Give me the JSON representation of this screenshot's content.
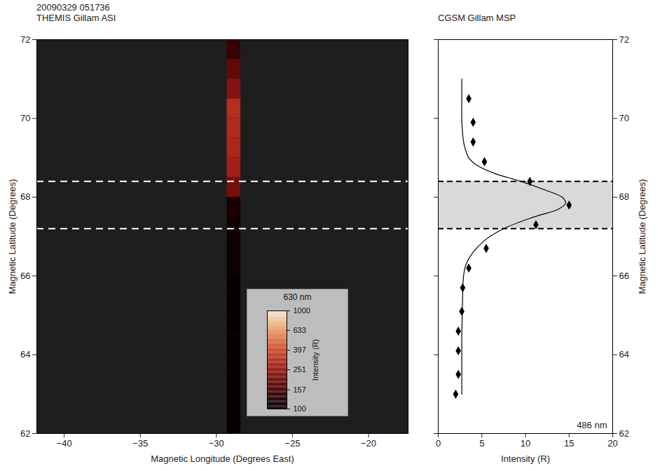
{
  "chart_data": [
    {
      "type": "image",
      "timestamp": "20090329 051736",
      "title": "THEMIS Gillam ASI",
      "x_label": "Magnetic Longitude (Degrees East)",
      "y_label": "Magnetic Latitude (Degrees)",
      "xlim": [
        -41.8,
        -17.4
      ],
      "xticks": [
        -40,
        -35,
        -30,
        -25,
        -20
      ],
      "ylim": [
        62,
        72
      ],
      "yticks": [
        62,
        64,
        66,
        68,
        70,
        72
      ],
      "dashed_lines": [
        67.2,
        68.4
      ],
      "msp_column": {
        "longitude": [
          -29.3,
          -28.4
        ],
        "latitude_bins": [
          62,
          62.5,
          63,
          63.5,
          64,
          64.5,
          65,
          65.5,
          66,
          66.5,
          67,
          67.5,
          68,
          68.5,
          69,
          69.5,
          70,
          70.5,
          71,
          71.5,
          72
        ],
        "intensity": [
          105,
          105,
          105,
          105,
          105,
          105,
          105,
          105,
          110,
          110,
          112,
          118,
          200,
          260,
          280,
          290,
          300,
          220,
          180,
          140
        ]
      },
      "colorbar": {
        "title": "630 nm",
        "label": "Intensity (R)",
        "range": [
          100,
          1000
        ],
        "ticks": [
          100,
          157,
          251,
          397,
          633,
          1000
        ],
        "log": true
      }
    },
    {
      "type": "line",
      "title": "CGSM Gillam MSP",
      "annotation": "486 nm",
      "x_label": "Intensity (R)",
      "y_label": "Magnetic Latitude (Degrees)",
      "xlim": [
        0,
        20
      ],
      "xticks": [
        0,
        5,
        10,
        15,
        20
      ],
      "ylim": [
        62,
        72
      ],
      "yticks": [
        62,
        64,
        66,
        68,
        70,
        72
      ],
      "band": [
        67.2,
        68.4
      ],
      "series": [
        {
          "type": "line",
          "color": "#000000",
          "line_style": "solid",
          "x": [
            2.7,
            2.7,
            2.7,
            2.7,
            2.75,
            2.8,
            2.9,
            3.2,
            4.0,
            5.3,
            7.5,
            11.0,
            13.8,
            14.6,
            14.2,
            12.0,
            9.5,
            6.5,
            4.5,
            3.5,
            3.0,
            2.8,
            2.7,
            2.7,
            2.7
          ],
          "y": [
            63.0,
            63.5,
            64.0,
            64.5,
            65.0,
            65.5,
            66.0,
            66.3,
            66.6,
            66.9,
            67.2,
            67.5,
            67.7,
            67.85,
            68.0,
            68.2,
            68.4,
            68.6,
            68.8,
            69.0,
            69.3,
            69.6,
            70.0,
            70.5,
            71.0
          ]
        },
        {
          "type": "scatter",
          "color": "#000000",
          "marker": "diamond",
          "x": [
            2.0,
            2.3,
            2.3,
            2.3,
            2.7,
            2.8,
            3.5,
            5.5,
            11.2,
            15.0,
            10.5,
            5.3,
            4.0,
            4.0,
            3.5
          ],
          "y": [
            63.0,
            63.5,
            64.1,
            64.6,
            65.1,
            65.7,
            66.2,
            66.7,
            67.3,
            67.8,
            68.4,
            68.9,
            69.4,
            69.9,
            70.5
          ]
        }
      ]
    }
  ]
}
